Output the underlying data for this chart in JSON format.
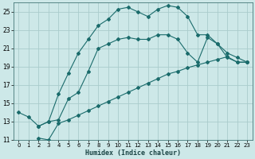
{
  "xlabel": "Humidex (Indice chaleur)",
  "bg_color": "#cde8e8",
  "grid_color": "#aacccc",
  "line_color": "#1a6b6b",
  "xlim": [
    -0.5,
    23.5
  ],
  "ylim": [
    11,
    26
  ],
  "yticks": [
    11,
    13,
    15,
    17,
    19,
    21,
    23,
    25
  ],
  "xticks": [
    0,
    1,
    2,
    3,
    4,
    5,
    6,
    7,
    8,
    9,
    10,
    11,
    12,
    13,
    14,
    15,
    16,
    17,
    18,
    19,
    20,
    21,
    22,
    23
  ],
  "line1_x": [
    0,
    1,
    2,
    3,
    4,
    5,
    6,
    7,
    8,
    9,
    10,
    11,
    12,
    13,
    14,
    15,
    16,
    17,
    18,
    19,
    20,
    21,
    22,
    23
  ],
  "line1_y": [
    14.0,
    13.5,
    12.5,
    13.0,
    16.0,
    18.3,
    20.5,
    22.0,
    23.5,
    24.2,
    25.3,
    25.5,
    25.0,
    24.5,
    25.3,
    25.7,
    25.5,
    24.5,
    22.5,
    22.5,
    21.5,
    20.0,
    19.5,
    19.5
  ],
  "line2_x": [
    2,
    3,
    4,
    5,
    6,
    7,
    8,
    9,
    10,
    11,
    12,
    13,
    14,
    15,
    16,
    17,
    18,
    19,
    20,
    21,
    22,
    23
  ],
  "line2_y": [
    12.5,
    13.0,
    13.2,
    15.5,
    16.2,
    18.5,
    21.0,
    21.5,
    22.0,
    22.2,
    22.0,
    22.0,
    22.5,
    22.5,
    22.0,
    20.5,
    19.5,
    22.2,
    21.5,
    20.5,
    20.0,
    19.5
  ],
  "line3_x": [
    2,
    3,
    4,
    5,
    6,
    7,
    8,
    9,
    10,
    11,
    12,
    13,
    14,
    15,
    16,
    17,
    18,
    19,
    20,
    21,
    22,
    23
  ],
  "line3_y": [
    11.2,
    11.0,
    12.8,
    13.2,
    13.7,
    14.2,
    14.7,
    15.2,
    15.7,
    16.2,
    16.7,
    17.2,
    17.7,
    18.2,
    18.5,
    18.9,
    19.2,
    19.5,
    19.8,
    20.1,
    19.5,
    19.5
  ]
}
